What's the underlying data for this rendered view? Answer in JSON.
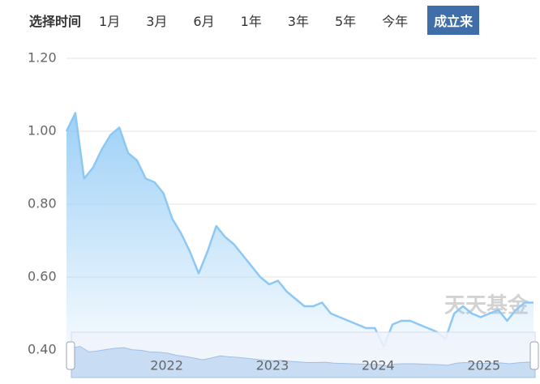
{
  "toolbar": {
    "label": "选择时间",
    "options": [
      "1月",
      "3月",
      "6月",
      "1年",
      "3年",
      "5年",
      "今年",
      "成立来"
    ],
    "active_index": 7
  },
  "watermark": "天天基金",
  "chart_data": {
    "type": "line",
    "categories": [
      null,
      null,
      null,
      null,
      null,
      null,
      null,
      null,
      null,
      null,
      null,
      "2022",
      null,
      null,
      null,
      null,
      null,
      null,
      null,
      null,
      null,
      null,
      null,
      "2023",
      null,
      null,
      null,
      null,
      null,
      null,
      null,
      null,
      null,
      null,
      null,
      "2024",
      null,
      null,
      null,
      null,
      null,
      null,
      null,
      null,
      null,
      null,
      null,
      "2025",
      null,
      null,
      null,
      null,
      null,
      null
    ],
    "values": [
      1.0,
      1.05,
      0.87,
      0.9,
      0.95,
      0.99,
      1.01,
      0.94,
      0.92,
      0.87,
      0.86,
      0.83,
      0.76,
      0.72,
      0.67,
      0.61,
      0.67,
      0.74,
      0.71,
      0.69,
      0.66,
      0.63,
      0.6,
      0.58,
      0.59,
      0.56,
      0.54,
      0.52,
      0.52,
      0.53,
      0.5,
      0.49,
      0.48,
      0.47,
      0.46,
      0.46,
      0.41,
      0.47,
      0.48,
      0.48,
      0.47,
      0.46,
      0.45,
      0.43,
      0.5,
      0.52,
      0.5,
      0.49,
      0.5,
      0.51,
      0.48,
      0.51,
      0.53,
      0.53
    ],
    "color": "#8cc8f5",
    "ylim": [
      0.4,
      1.2
    ],
    "yticks": [
      {
        "value": 0.4,
        "label": "0.40"
      },
      {
        "value": 0.6,
        "label": "0.60"
      },
      {
        "value": 0.8,
        "label": "0.80"
      },
      {
        "value": 1.0,
        "label": "1.00"
      },
      {
        "value": 1.2,
        "label": "1.20"
      }
    ],
    "grid": true
  }
}
